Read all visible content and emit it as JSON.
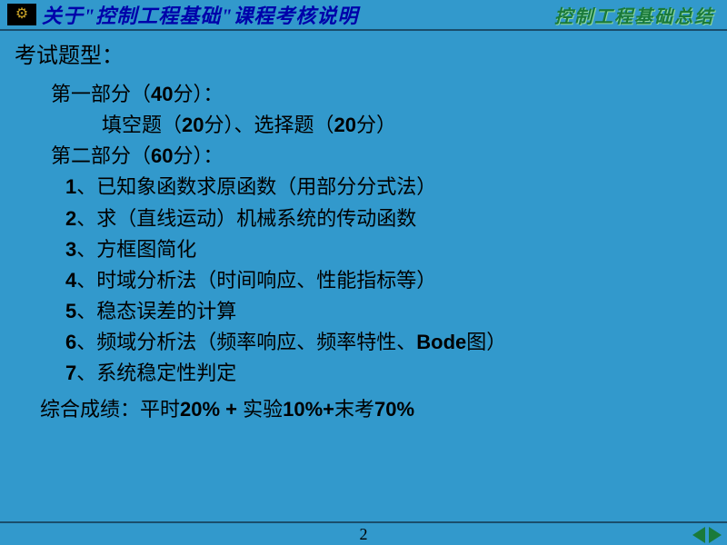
{
  "header": {
    "title": "关于\"控制工程基础\"课程考核说明",
    "subtitle": "控制工程基础总结"
  },
  "content": {
    "exam_types_label": "考试题型：",
    "part1": {
      "heading_pre": "第一部分（",
      "points": "40",
      "heading_post": "分）：",
      "fill_pre": "填空题（",
      "fill_points": "20",
      "fill_post": "分）、选择题（",
      "choice_points": "20",
      "choice_post": "分）"
    },
    "part2": {
      "heading_pre": "第二部分（",
      "points": "60",
      "heading_post": "分）："
    },
    "items": [
      {
        "num": "1",
        "text": "、已知象函数求原函数（用部分分式法）"
      },
      {
        "num": "2",
        "text": "、求（直线运动）机械系统的传动函数"
      },
      {
        "num": "3",
        "text": "、方框图简化"
      },
      {
        "num": "4",
        "text": "、时域分析法（时间响应、性能指标等）"
      },
      {
        "num": "5",
        "text": "、稳态误差的计算"
      },
      {
        "num": "6",
        "text_pre": "、频域分析法（频率响应、频率特性、",
        "bold": "Bode",
        "text_post": "图）"
      },
      {
        "num": "7",
        "text": "、系统稳定性判定"
      }
    ],
    "final": {
      "pre": "综合成绩：平时",
      "p1": "20% + ",
      "mid1": "实验",
      "p2": "10%+",
      "mid2": "末考",
      "p3": "70%"
    }
  },
  "footer": {
    "page": "2"
  },
  "colors": {
    "background": "#3299cc",
    "title": "#0000aa",
    "subtitle": "#1a7a3a",
    "text": "#000000",
    "divider": "#1a4d6b",
    "arrow": "#1a7a3a"
  }
}
